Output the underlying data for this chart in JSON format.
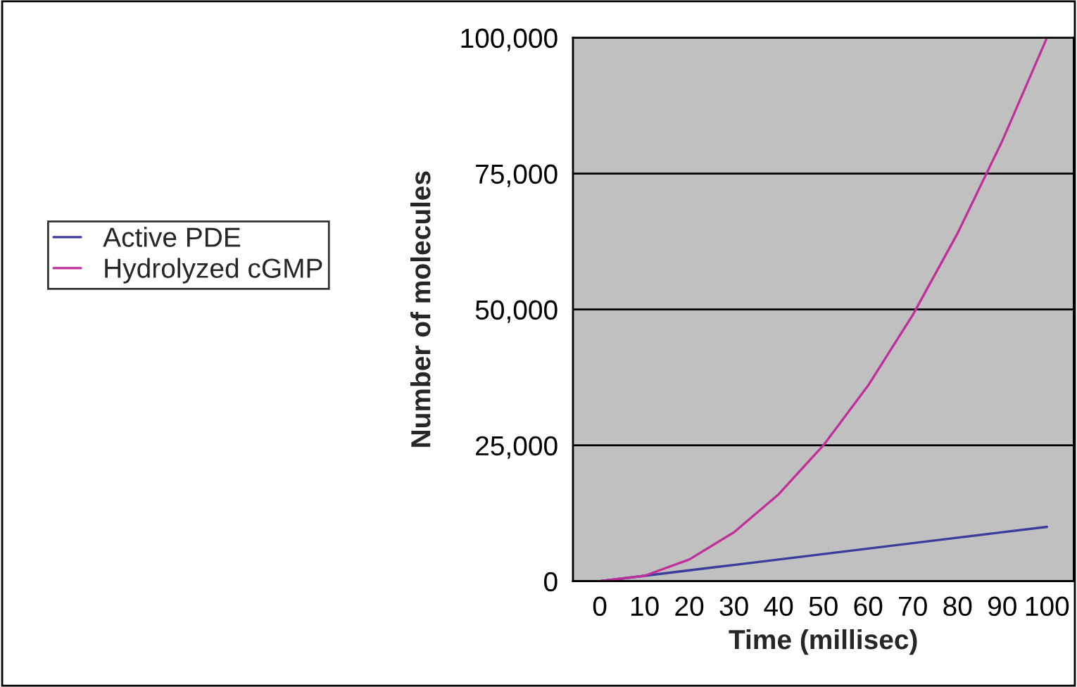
{
  "chart_data": {
    "type": "line",
    "xlabel": "Time (millisec)",
    "ylabel": "Number of molecules",
    "categories": [
      "0",
      "10",
      "20",
      "30",
      "40",
      "50",
      "60",
      "70",
      "80",
      "90",
      "100"
    ],
    "series": [
      {
        "name": "Active PDE",
        "color": "#3c3c9c",
        "values": [
          0,
          1000,
          2000,
          3000,
          4000,
          5000,
          6000,
          7000,
          8000,
          9000,
          10000
        ]
      },
      {
        "name": "Hydrolyzed cGMP",
        "color": "#c0309a",
        "values": [
          0,
          1000,
          4000,
          9000,
          16000,
          25000,
          36000,
          49000,
          64000,
          81000,
          100000
        ]
      }
    ],
    "ylim": [
      0,
      100000
    ],
    "yticks": [
      {
        "value": 0,
        "label": "0"
      },
      {
        "value": 25000,
        "label": "25,000"
      },
      {
        "value": 50000,
        "label": "50,000"
      },
      {
        "value": 75000,
        "label": "75,000"
      },
      {
        "value": 100000,
        "label": "100,000"
      }
    ],
    "grid": "y",
    "legend": "left",
    "marker": "none",
    "line_style": "solid"
  }
}
